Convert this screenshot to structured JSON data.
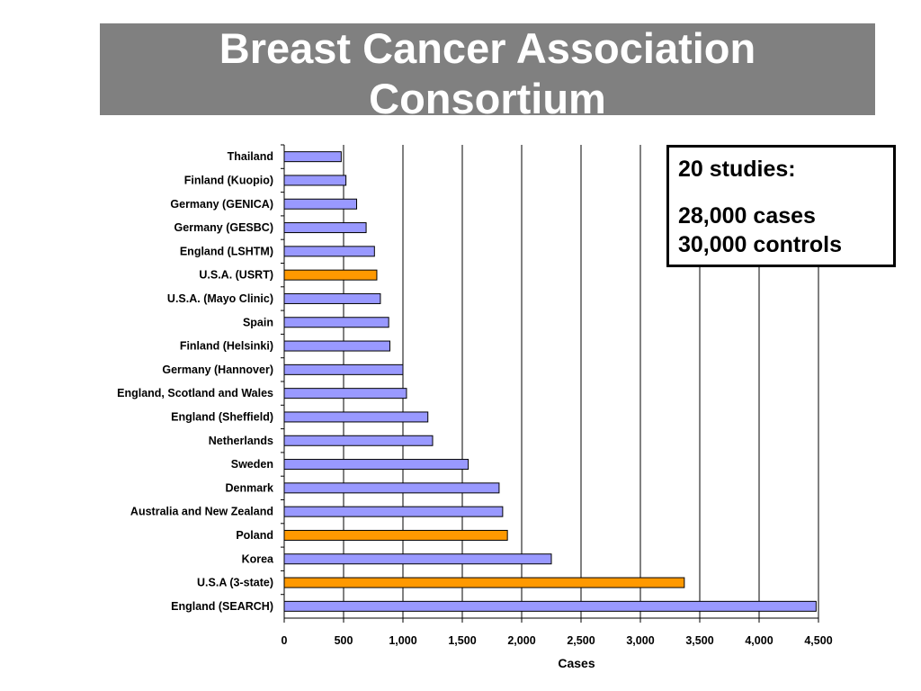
{
  "title": {
    "line1": "Breast Cancer Association",
    "line2": "Consortium"
  },
  "info_box": {
    "studies": "20 studies:",
    "cases": "28,000 cases",
    "controls": "30,000 controls"
  },
  "colors": {
    "default_bar": "#9999ff",
    "highlight_bar": "#ff9900",
    "title_banner": "#808080"
  },
  "chart_data": {
    "type": "bar",
    "orientation": "horizontal",
    "xlabel": "Cases",
    "ylabel": "",
    "xlim": [
      0,
      4500
    ],
    "x_ticks": [
      0,
      500,
      1000,
      1500,
      2000,
      2500,
      3000,
      3500,
      4000,
      4500
    ],
    "x_tick_labels": [
      "0",
      "500",
      "1,000",
      "1,500",
      "2,000",
      "2,500",
      "3,000",
      "3,500",
      "4,000",
      "4,500"
    ],
    "grid": "vertical major gridlines",
    "categories": [
      "Thailand",
      "Finland (Kuopio)",
      "Germany (GENICA)",
      "Germany (GESBC)",
      "England (LSHTM)",
      "U.S.A. (USRT)",
      "U.S.A. (Mayo Clinic)",
      "Spain",
      "Finland (Helsinki)",
      "Germany (Hannover)",
      "England, Scotland and Wales",
      "England (Sheffield)",
      "Netherlands",
      "Sweden",
      "Denmark",
      "Australia and New Zealand",
      "Poland",
      "Korea",
      "U.S.A (3-state)",
      "England (SEARCH)"
    ],
    "values": [
      480,
      520,
      610,
      690,
      760,
      780,
      810,
      880,
      890,
      1000,
      1030,
      1210,
      1250,
      1550,
      1810,
      1840,
      1880,
      2250,
      3370,
      4480
    ],
    "highlighted": [
      false,
      false,
      false,
      false,
      false,
      true,
      false,
      false,
      false,
      false,
      false,
      false,
      false,
      false,
      false,
      false,
      true,
      false,
      true,
      false
    ]
  }
}
